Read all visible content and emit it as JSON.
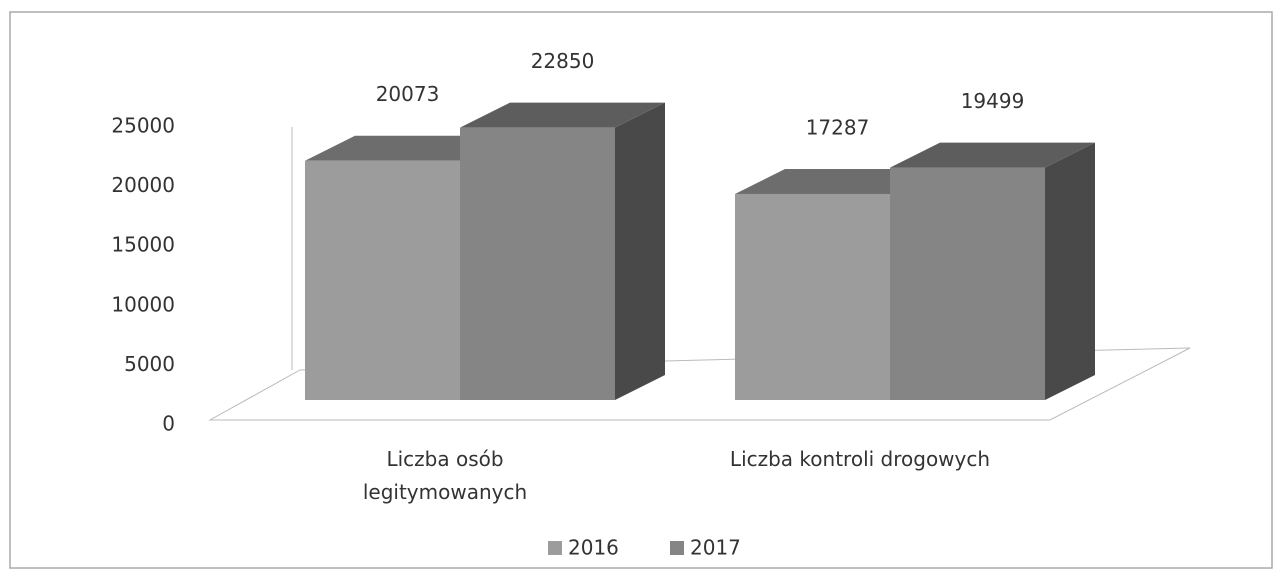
{
  "chart_data": {
    "type": "bar3d",
    "categories": [
      "Liczba osób legitymowanych",
      "Liczba kontroli drogowych"
    ],
    "series": [
      {
        "name": "2016",
        "color": "#9c9c9c",
        "values": [
          20073,
          17287
        ]
      },
      {
        "name": "2017",
        "color": "#858585",
        "values": [
          22850,
          19499
        ]
      }
    ],
    "ylim": [
      0,
      25000
    ],
    "yticks": [
      0,
      5000,
      10000,
      15000,
      20000,
      25000
    ],
    "legend": "bottom"
  }
}
